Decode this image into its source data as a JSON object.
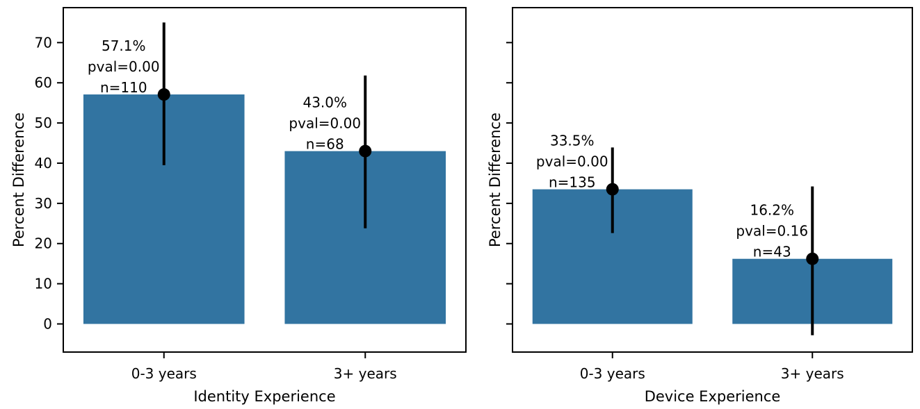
{
  "figure": {
    "background": "#ffffff"
  },
  "colors": {
    "bar": "#3274a1",
    "error_bar": "#000000",
    "spine": "#000000",
    "text": "#000000"
  },
  "chart_data": [
    {
      "type": "bar",
      "title": "",
      "xlabel": "Identity Experience",
      "ylabel": "Percent Difference",
      "categories": [
        "0-3 years",
        "3+ years"
      ],
      "values": [
        57.1,
        43.0
      ],
      "error_low": [
        39.5,
        23.8
      ],
      "error_high": [
        75.0,
        61.8
      ],
      "annotations": [
        [
          "57.1%",
          "pval=0.00",
          "n=110"
        ],
        [
          "43.0%",
          "pval=0.00",
          "n=68"
        ]
      ],
      "ylim": [
        -7,
        78.7
      ],
      "yticks": [
        0,
        10,
        20,
        30,
        40,
        50,
        60,
        70
      ],
      "show_ytick_labels": true,
      "grid": false,
      "legend": null
    },
    {
      "type": "bar",
      "title": "",
      "xlabel": "Device Experience",
      "ylabel": "Percent Difference",
      "categories": [
        "0-3 years",
        "3+ years"
      ],
      "values": [
        33.5,
        16.2
      ],
      "error_low": [
        22.6,
        -2.8
      ],
      "error_high": [
        43.9,
        34.2
      ],
      "annotations": [
        [
          "33.5%",
          "pval=0.00",
          "n=135"
        ],
        [
          "16.2%",
          "pval=0.16",
          "n=43"
        ]
      ],
      "ylim": [
        -7,
        78.7
      ],
      "yticks": [
        0,
        10,
        20,
        30,
        40,
        50,
        60,
        70
      ],
      "show_ytick_labels": false,
      "grid": false,
      "legend": null
    }
  ]
}
